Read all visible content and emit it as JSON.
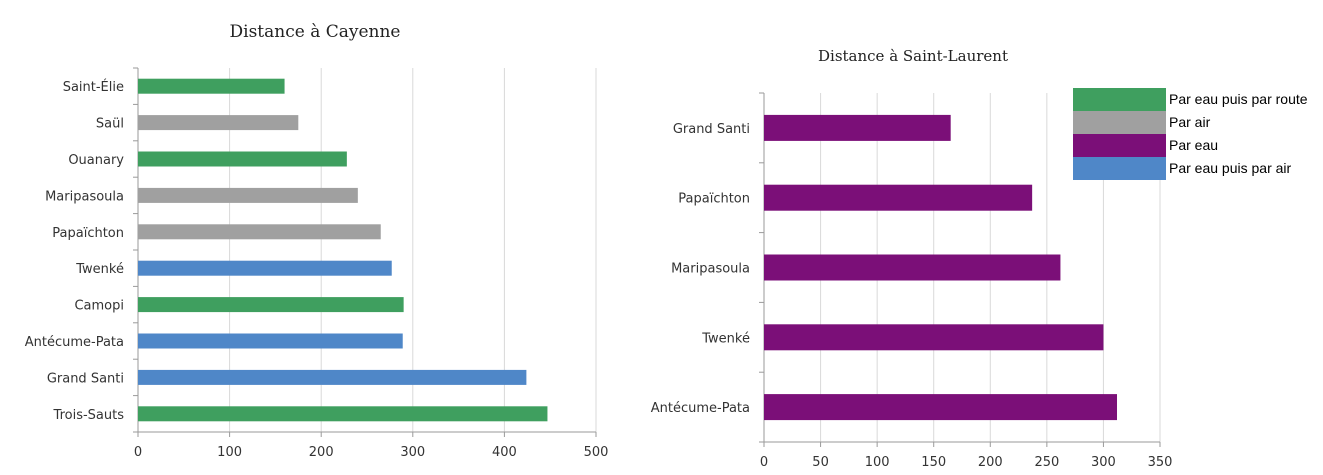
{
  "colors": {
    "eau_route": "#3f9f5f",
    "air": "#a0a0a0",
    "eau": "#7b0f78",
    "eau_air": "#4f87c8",
    "grid": "#d9d9d9",
    "axis": "#9a9a9a"
  },
  "legend": [
    {
      "label": "Par eau puis par route",
      "color_key": "eau_route"
    },
    {
      "label": "Par air",
      "color_key": "air"
    },
    {
      "label": "Par eau",
      "color_key": "eau"
    },
    {
      "label": "Par eau puis par air",
      "color_key": "eau_air"
    }
  ],
  "chart_data": [
    {
      "type": "bar",
      "orientation": "horizontal",
      "title": "Distance à  Cayenne",
      "categories": [
        "Saint-Élie",
        "Saül",
        "Ouanary",
        "Maripasoula",
        "Papaïchton",
        "Twenké",
        "Camopi",
        "Antécume-Pata",
        "Grand Santi",
        "Trois-Sauts"
      ],
      "values": [
        160,
        175,
        228,
        240,
        265,
        277,
        290,
        289,
        424,
        447
      ],
      "modes": [
        "eau_route",
        "air",
        "eau_route",
        "air",
        "air",
        "eau_air",
        "eau_route",
        "eau_air",
        "eau_air",
        "eau_route"
      ],
      "xlim": [
        0,
        500
      ],
      "xticks": [
        0,
        100,
        200,
        300,
        400,
        500
      ],
      "grid": true
    },
    {
      "type": "bar",
      "orientation": "horizontal",
      "title": "Distance à Saint-Laurent",
      "categories": [
        "Grand Santi",
        "Papaïchton",
        "Maripasoula",
        "Twenké",
        "Antécume-Pata"
      ],
      "values": [
        165,
        237,
        262,
        300,
        312
      ],
      "modes": [
        "eau",
        "eau",
        "eau",
        "eau",
        "eau"
      ],
      "xlim": [
        0,
        350
      ],
      "xticks": [
        0,
        50,
        100,
        150,
        200,
        250,
        300,
        350
      ],
      "grid": true
    }
  ]
}
